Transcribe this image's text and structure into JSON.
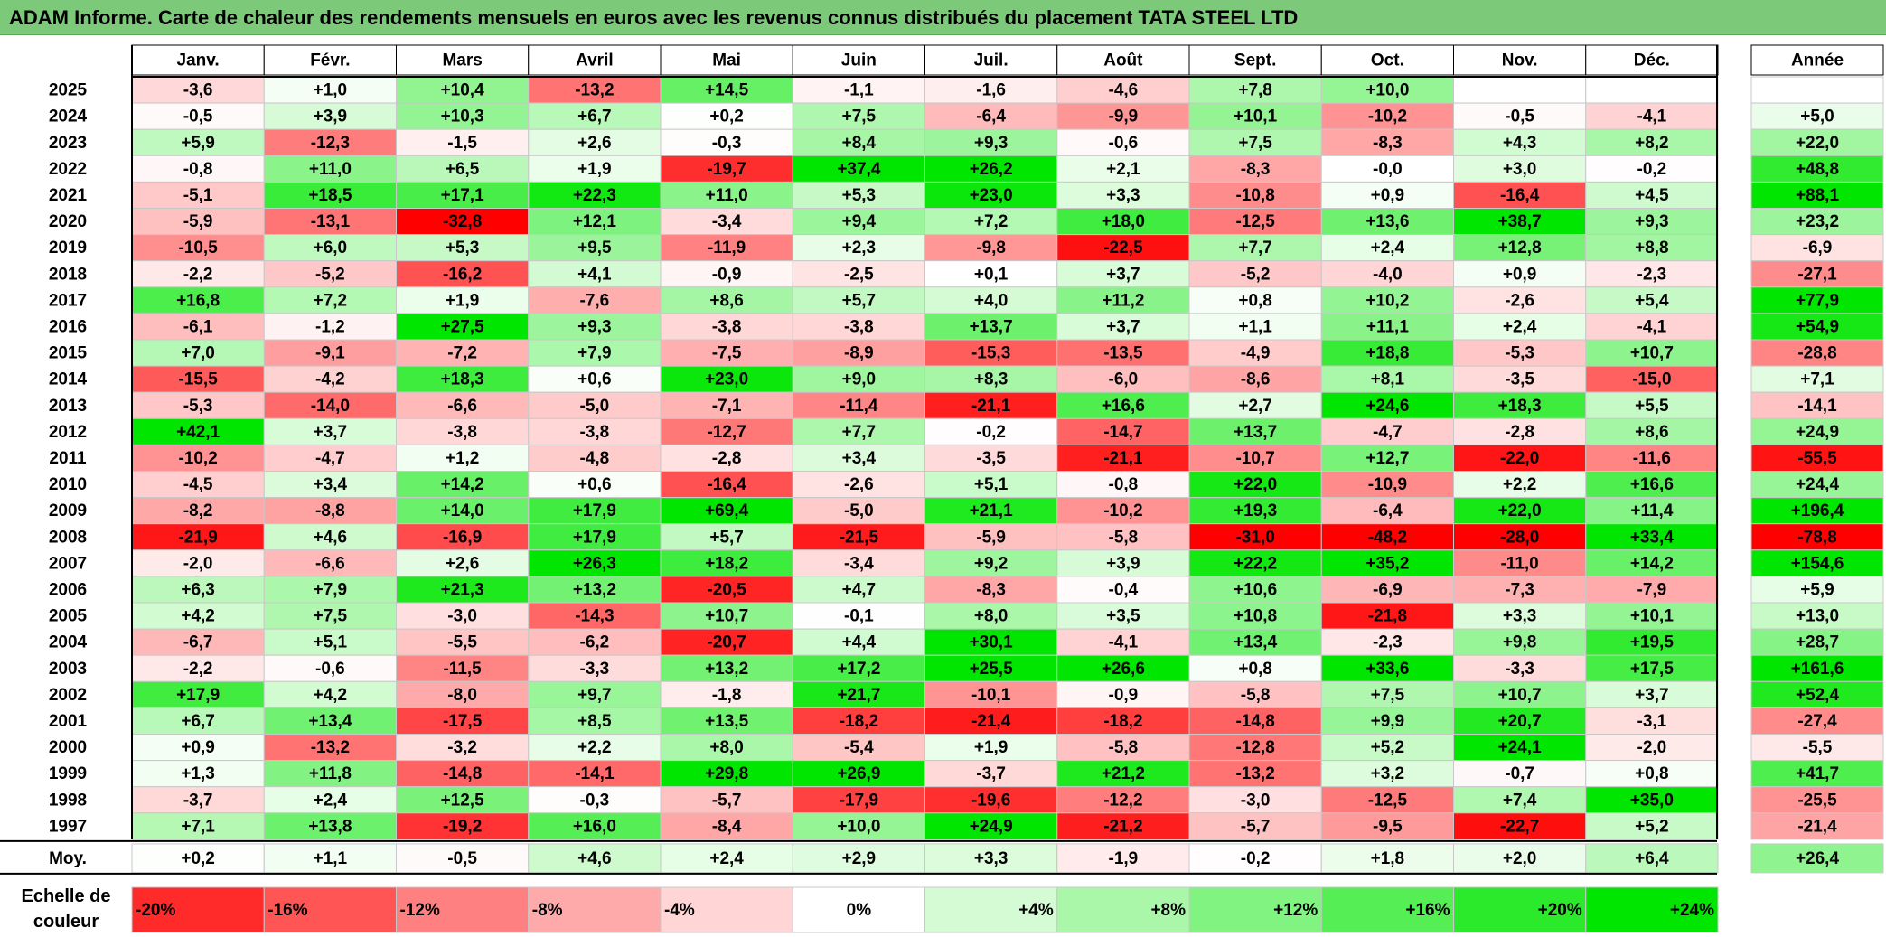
{
  "title": "ADAM Informe. Carte de chaleur des rendements mensuels en euros avec les revenus connus distribués du placement TATA STEEL LTD",
  "chart_data": {
    "type": "heatmap",
    "title": "ADAM Informe. Carte de chaleur des rendements mensuels en euros avec les revenus connus distribués du placement TATA STEEL LTD",
    "months": [
      "Janv.",
      "Févr.",
      "Mars",
      "Avril",
      "Mai",
      "Juin",
      "Juil.",
      "Août",
      "Sept.",
      "Oct.",
      "Nov.",
      "Déc."
    ],
    "annual_header": "Année",
    "rows": [
      {
        "year": "2025",
        "values": [
          "-3,6",
          "+1,0",
          "+10,4",
          "-13,2",
          "+14,5",
          "-1,1",
          "-1,6",
          "-4,6",
          "+7,8",
          "+10,0",
          "",
          ""
        ],
        "annual": ""
      },
      {
        "year": "2024",
        "values": [
          "-0,5",
          "+3,9",
          "+10,3",
          "+6,7",
          "+0,2",
          "+7,5",
          "-6,4",
          "-9,9",
          "+10,1",
          "-10,2",
          "-0,5",
          "-4,1"
        ],
        "annual": "+5,0"
      },
      {
        "year": "2023",
        "values": [
          "+5,9",
          "-12,3",
          "-1,5",
          "+2,6",
          "-0,3",
          "+8,4",
          "+9,3",
          "-0,6",
          "+7,5",
          "-8,3",
          "+4,3",
          "+8,2"
        ],
        "annual": "+22,0"
      },
      {
        "year": "2022",
        "values": [
          "-0,8",
          "+11,0",
          "+6,5",
          "+1,9",
          "-19,7",
          "+37,4",
          "+26,2",
          "+2,1",
          "-8,3",
          "-0,0",
          "+3,0",
          "-0,2"
        ],
        "annual": "+48,8"
      },
      {
        "year": "2021",
        "values": [
          "-5,1",
          "+18,5",
          "+17,1",
          "+22,3",
          "+11,0",
          "+5,3",
          "+23,0",
          "+3,3",
          "-10,8",
          "+0,9",
          "-16,4",
          "+4,5"
        ],
        "annual": "+88,1"
      },
      {
        "year": "2020",
        "values": [
          "-5,9",
          "-13,1",
          "-32,8",
          "+12,1",
          "-3,4",
          "+9,4",
          "+7,2",
          "+18,0",
          "-12,5",
          "+13,6",
          "+38,7",
          "+9,3"
        ],
        "annual": "+23,2"
      },
      {
        "year": "2019",
        "values": [
          "-10,5",
          "+6,0",
          "+5,3",
          "+9,5",
          "-11,9",
          "+2,3",
          "-9,8",
          "-22,5",
          "+7,7",
          "+2,4",
          "+12,8",
          "+8,8"
        ],
        "annual": "-6,9"
      },
      {
        "year": "2018",
        "values": [
          "-2,2",
          "-5,2",
          "-16,2",
          "+4,1",
          "-0,9",
          "-2,5",
          "+0,1",
          "+3,7",
          "-5,2",
          "-4,0",
          "+0,9",
          "-2,3"
        ],
        "annual": "-27,1"
      },
      {
        "year": "2017",
        "values": [
          "+16,8",
          "+7,2",
          "+1,9",
          "-7,6",
          "+8,6",
          "+5,7",
          "+4,0",
          "+11,2",
          "+0,8",
          "+10,2",
          "-2,6",
          "+5,4"
        ],
        "annual": "+77,9"
      },
      {
        "year": "2016",
        "values": [
          "-6,1",
          "-1,2",
          "+27,5",
          "+9,3",
          "-3,8",
          "-3,8",
          "+13,7",
          "+3,7",
          "+1,1",
          "+11,1",
          "+2,4",
          "-4,1"
        ],
        "annual": "+54,9"
      },
      {
        "year": "2015",
        "values": [
          "+7,0",
          "-9,1",
          "-7,2",
          "+7,9",
          "-7,5",
          "-8,9",
          "-15,3",
          "-13,5",
          "-4,9",
          "+18,8",
          "-5,3",
          "+10,7"
        ],
        "annual": "-28,8"
      },
      {
        "year": "2014",
        "values": [
          "-15,5",
          "-4,2",
          "+18,3",
          "+0,6",
          "+23,0",
          "+9,0",
          "+8,3",
          "-6,0",
          "-8,6",
          "+8,1",
          "-3,5",
          "-15,0"
        ],
        "annual": "+7,1"
      },
      {
        "year": "2013",
        "values": [
          "-5,3",
          "-14,0",
          "-6,6",
          "-5,0",
          "-7,1",
          "-11,4",
          "-21,1",
          "+16,6",
          "+2,7",
          "+24,6",
          "+18,3",
          "+5,5"
        ],
        "annual": "-14,1"
      },
      {
        "year": "2012",
        "values": [
          "+42,1",
          "+3,7",
          "-3,8",
          "-3,8",
          "-12,7",
          "+7,7",
          "-0,2",
          "-14,7",
          "+13,7",
          "-4,7",
          "-2,8",
          "+8,6"
        ],
        "annual": "+24,9"
      },
      {
        "year": "2011",
        "values": [
          "-10,2",
          "-4,7",
          "+1,2",
          "-4,8",
          "-2,8",
          "+3,4",
          "-3,5",
          "-21,1",
          "-10,7",
          "+12,7",
          "-22,0",
          "-11,6"
        ],
        "annual": "-55,5"
      },
      {
        "year": "2010",
        "values": [
          "-4,5",
          "+3,4",
          "+14,2",
          "+0,6",
          "-16,4",
          "-2,6",
          "+5,1",
          "-0,8",
          "+22,0",
          "-10,9",
          "+2,2",
          "+16,6"
        ],
        "annual": "+24,4"
      },
      {
        "year": "2009",
        "values": [
          "-8,2",
          "-8,8",
          "+14,0",
          "+17,9",
          "+69,4",
          "-5,0",
          "+21,1",
          "-10,2",
          "+19,3",
          "-6,4",
          "+22,0",
          "+11,4"
        ],
        "annual": "+196,4"
      },
      {
        "year": "2008",
        "values": [
          "-21,9",
          "+4,6",
          "-16,9",
          "+17,9",
          "+5,7",
          "-21,5",
          "-5,9",
          "-5,8",
          "-31,0",
          "-48,2",
          "-28,0",
          "+33,4"
        ],
        "annual": "-78,8"
      },
      {
        "year": "2007",
        "values": [
          "-2,0",
          "-6,6",
          "+2,6",
          "+26,3",
          "+18,2",
          "-3,4",
          "+9,2",
          "+3,9",
          "+22,2",
          "+35,2",
          "-11,0",
          "+14,2"
        ],
        "annual": "+154,6"
      },
      {
        "year": "2006",
        "values": [
          "+6,3",
          "+7,9",
          "+21,3",
          "+13,2",
          "-20,5",
          "+4,7",
          "-8,3",
          "-0,4",
          "+10,6",
          "-6,9",
          "-7,3",
          "-7,9"
        ],
        "annual": "+5,9"
      },
      {
        "year": "2005",
        "values": [
          "+4,2",
          "+7,5",
          "-3,0",
          "-14,3",
          "+10,7",
          "-0,1",
          "+8,0",
          "+3,5",
          "+10,8",
          "-21,8",
          "+3,3",
          "+10,1"
        ],
        "annual": "+13,0"
      },
      {
        "year": "2004",
        "values": [
          "-6,7",
          "+5,1",
          "-5,5",
          "-6,2",
          "-20,7",
          "+4,4",
          "+30,1",
          "-4,1",
          "+13,4",
          "-2,3",
          "+9,8",
          "+19,5"
        ],
        "annual": "+28,7"
      },
      {
        "year": "2003",
        "values": [
          "-2,2",
          "-0,6",
          "-11,5",
          "-3,3",
          "+13,2",
          "+17,2",
          "+25,5",
          "+26,6",
          "+0,8",
          "+33,6",
          "-3,3",
          "+17,5"
        ],
        "annual": "+161,6"
      },
      {
        "year": "2002",
        "values": [
          "+17,9",
          "+4,2",
          "-8,0",
          "+9,7",
          "-1,8",
          "+21,7",
          "-10,1",
          "-0,9",
          "-5,8",
          "+7,5",
          "+10,7",
          "+3,7"
        ],
        "annual": "+52,4"
      },
      {
        "year": "2001",
        "values": [
          "+6,7",
          "+13,4",
          "-17,5",
          "+8,5",
          "+13,5",
          "-18,2",
          "-21,4",
          "-18,2",
          "-14,8",
          "+9,9",
          "+20,7",
          "-3,1"
        ],
        "annual": "-27,4"
      },
      {
        "year": "2000",
        "values": [
          "+0,9",
          "-13,2",
          "-3,2",
          "+2,2",
          "+8,0",
          "-5,4",
          "+1,9",
          "-5,8",
          "-12,8",
          "+5,2",
          "+24,1",
          "-2,0"
        ],
        "annual": "-5,5"
      },
      {
        "year": "1999",
        "values": [
          "+1,3",
          "+11,8",
          "-14,8",
          "-14,1",
          "+29,8",
          "+26,9",
          "-3,7",
          "+21,2",
          "-13,2",
          "+3,2",
          "-0,7",
          "+0,8"
        ],
        "annual": "+41,7"
      },
      {
        "year": "1998",
        "values": [
          "-3,7",
          "+2,4",
          "+12,5",
          "-0,3",
          "-5,7",
          "-17,9",
          "-19,6",
          "-12,2",
          "-3,0",
          "-12,5",
          "+7,4",
          "+35,0"
        ],
        "annual": "-25,5"
      },
      {
        "year": "1997",
        "values": [
          "+7,1",
          "+13,8",
          "-19,2",
          "+16,0",
          "-8,4",
          "+10,0",
          "+24,9",
          "-21,2",
          "-5,7",
          "-9,5",
          "-22,7",
          "+5,2"
        ],
        "annual": "-21,4"
      }
    ],
    "average": {
      "label": "Moy.",
      "values": [
        "+0,2",
        "+1,1",
        "-0,5",
        "+4,6",
        "+2,4",
        "+2,9",
        "+3,3",
        "-1,9",
        "-0,2",
        "+1,8",
        "+2,0",
        "+6,4"
      ],
      "annual": "+26,4"
    },
    "scale": {
      "label_line1": "Echelle de",
      "label_line2": "couleur",
      "labels": [
        "-20%",
        "-16%",
        "-12%",
        "-8%",
        "-4%",
        "0%",
        "+4%",
        "+8%",
        "+12%",
        "+16%",
        "+20%",
        "+24%"
      ],
      "values": [
        -20,
        -16,
        -12,
        -8,
        -4,
        0,
        4,
        8,
        12,
        16,
        20,
        24
      ]
    },
    "colors": {
      "negative": "#ff0000",
      "positive": "#00e600",
      "neutral": "#ffffff",
      "title_bg": "#7dc97a"
    }
  }
}
